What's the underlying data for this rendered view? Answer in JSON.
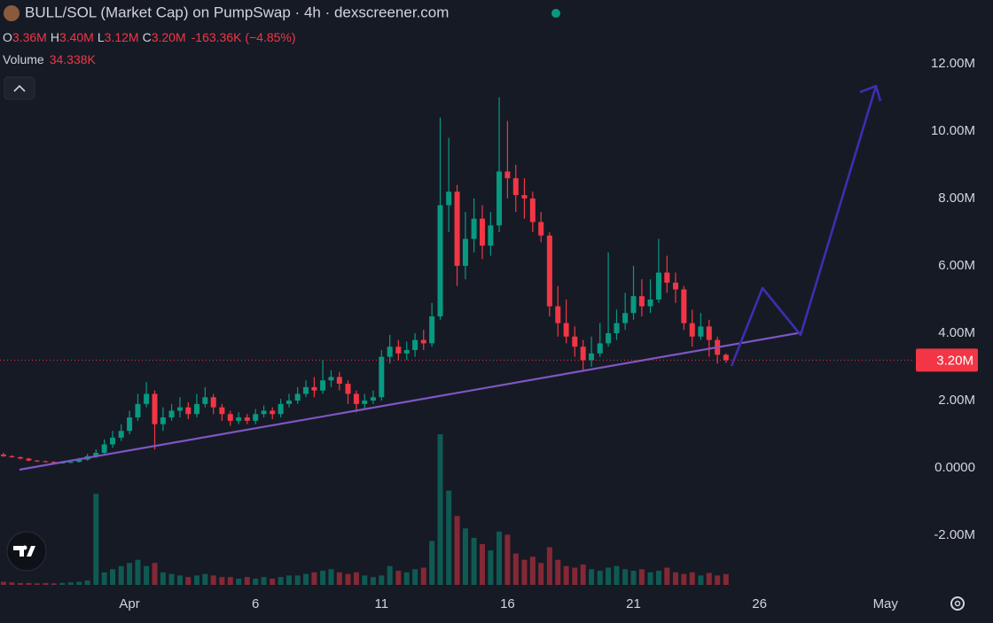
{
  "chart_data": {
    "type": "candlestick",
    "title": "BULL/SOL (Market Cap) on PumpSwap · 4h · dexscreener.com",
    "ohlc_legend": [
      {
        "key": "O",
        "value": 3.36,
        "label": "3.36M"
      },
      {
        "key": "H",
        "value": 3.4,
        "label": "3.40M"
      },
      {
        "key": "L",
        "value": 3.12,
        "label": "3.12M"
      },
      {
        "key": "C",
        "value": 3.2,
        "label": "3.20M"
      }
    ],
    "change": {
      "value": -0.16336,
      "percent": -4.85,
      "label": "-163.36K (−4.85%)"
    },
    "volume_legend": {
      "name": "Volume",
      "value": 34.338,
      "label": "34.338K"
    },
    "x": [
      -4,
      -3.67,
      -3.33,
      -3,
      -2.67,
      -2.33,
      -2,
      -1.67,
      -1.33,
      -1,
      -0.67,
      -0.33,
      0,
      0.33,
      0.67,
      1,
      1.33,
      1.67,
      2,
      2.33,
      2.67,
      3,
      3.33,
      3.67,
      4,
      4.33,
      4.67,
      5,
      5.33,
      5.67,
      6,
      6.33,
      6.67,
      7,
      7.33,
      7.67,
      8,
      8.33,
      8.67,
      9,
      9.33,
      9.67,
      10,
      10.33,
      10.67,
      11,
      11.33,
      11.67,
      12,
      12.33,
      12.67,
      13,
      13.33,
      13.67,
      14,
      14.33,
      14.67,
      15,
      15.33,
      15.67,
      16,
      16.33,
      16.67,
      17,
      17.33,
      17.67,
      18,
      18.33,
      18.67,
      19,
      19.33,
      19.67,
      20,
      20.33,
      20.67,
      21,
      21.33,
      21.67,
      22,
      22.33,
      22.67,
      23,
      23.33,
      23.67,
      24,
      24.33,
      24.67
    ],
    "open": [
      0.4,
      0.35,
      0.32,
      0.28,
      0.22,
      0.2,
      0.18,
      0.15,
      0.16,
      0.18,
      0.25,
      0.35,
      0.45,
      0.7,
      0.9,
      1.1,
      1.5,
      1.9,
      2.2,
      1.3,
      1.5,
      1.7,
      1.8,
      1.6,
      1.9,
      2.1,
      1.8,
      1.6,
      1.4,
      1.5,
      1.4,
      1.6,
      1.7,
      1.6,
      1.9,
      2.0,
      2.2,
      2.4,
      2.3,
      2.6,
      2.7,
      2.5,
      2.2,
      1.9,
      2.0,
      2.1,
      3.3,
      3.6,
      3.4,
      3.5,
      3.8,
      3.7,
      4.5,
      7.8,
      8.2,
      6.0,
      6.8,
      7.4,
      6.6,
      7.2,
      8.8,
      8.6,
      8.1,
      8.0,
      7.3,
      6.9,
      4.8,
      4.3,
      3.9,
      3.6,
      3.2,
      3.4,
      3.7,
      4.0,
      4.3,
      4.6,
      5.1,
      4.8,
      5.0,
      5.8,
      5.5,
      5.3,
      4.3,
      3.9,
      4.2,
      3.8,
      3.36
    ],
    "high": [
      0.45,
      0.38,
      0.34,
      0.3,
      0.24,
      0.22,
      0.2,
      0.18,
      0.22,
      0.3,
      0.42,
      0.55,
      0.85,
      1.1,
      1.3,
      1.7,
      2.2,
      2.55,
      2.3,
      1.8,
      1.9,
      2.1,
      1.95,
      2.2,
      2.4,
      2.2,
      1.9,
      1.7,
      1.65,
      1.6,
      1.75,
      1.85,
      1.8,
      2.05,
      2.2,
      2.4,
      2.6,
      2.7,
      3.2,
      2.9,
      2.85,
      2.6,
      2.3,
      2.2,
      2.3,
      3.5,
      3.95,
      3.8,
      3.75,
      4.0,
      4.1,
      4.9,
      10.4,
      9.8,
      8.4,
      7.6,
      8.0,
      7.8,
      7.6,
      11.0,
      10.3,
      9.0,
      8.6,
      8.2,
      7.6,
      7.0,
      5.4,
      5.0,
      4.2,
      3.8,
      3.9,
      4.3,
      6.4,
      4.7,
      5.2,
      6.0,
      5.6,
      5.6,
      6.8,
      6.3,
      5.8,
      5.4,
      4.7,
      4.6,
      4.4,
      3.9,
      3.4
    ],
    "low": [
      0.33,
      0.3,
      0.26,
      0.2,
      0.18,
      0.16,
      0.13,
      0.13,
      0.14,
      0.16,
      0.22,
      0.3,
      0.4,
      0.6,
      0.8,
      1.0,
      1.4,
      1.8,
      0.55,
      1.1,
      1.4,
      1.5,
      1.45,
      1.5,
      1.8,
      1.6,
      1.4,
      1.25,
      1.3,
      1.3,
      1.3,
      1.5,
      1.45,
      1.5,
      1.8,
      1.9,
      2.1,
      2.1,
      2.2,
      2.4,
      2.3,
      1.9,
      1.65,
      1.75,
      1.9,
      2.0,
      3.1,
      3.2,
      3.2,
      3.3,
      3.5,
      3.6,
      4.4,
      7.0,
      5.4,
      5.6,
      6.4,
      6.2,
      6.3,
      7.0,
      8.0,
      7.6,
      7.4,
      7.0,
      6.7,
      4.5,
      3.9,
      3.7,
      3.3,
      2.9,
      3.0,
      3.3,
      3.6,
      3.8,
      4.1,
      4.4,
      4.5,
      4.6,
      4.9,
      5.2,
      4.9,
      4.1,
      3.6,
      3.8,
      3.3,
      3.1,
      3.12
    ],
    "close": [
      0.35,
      0.32,
      0.28,
      0.22,
      0.2,
      0.18,
      0.15,
      0.16,
      0.18,
      0.25,
      0.35,
      0.45,
      0.7,
      0.9,
      1.1,
      1.5,
      1.9,
      2.2,
      1.3,
      1.5,
      1.7,
      1.8,
      1.6,
      1.9,
      2.1,
      1.8,
      1.6,
      1.4,
      1.5,
      1.4,
      1.6,
      1.7,
      1.6,
      1.9,
      2.0,
      2.2,
      2.4,
      2.3,
      2.6,
      2.7,
      2.5,
      2.2,
      1.9,
      2.0,
      2.1,
      3.3,
      3.6,
      3.4,
      3.5,
      3.8,
      3.7,
      4.5,
      7.8,
      8.2,
      6.0,
      6.8,
      7.4,
      6.6,
      7.2,
      8.8,
      8.6,
      8.1,
      8.0,
      7.3,
      6.9,
      4.8,
      4.3,
      3.9,
      3.6,
      3.2,
      3.4,
      3.7,
      4.0,
      4.3,
      4.6,
      5.1,
      4.8,
      5.0,
      5.8,
      5.5,
      5.3,
      4.3,
      3.9,
      4.2,
      3.8,
      3.36,
      3.2
    ],
    "volume": [
      10,
      8,
      6,
      6,
      5,
      6,
      5,
      6,
      8,
      10,
      14,
      290,
      40,
      50,
      60,
      70,
      80,
      60,
      70,
      40,
      35,
      30,
      25,
      30,
      35,
      30,
      25,
      25,
      20,
      25,
      20,
      25,
      20,
      25,
      30,
      30,
      35,
      40,
      45,
      50,
      40,
      35,
      40,
      30,
      25,
      30,
      60,
      45,
      40,
      50,
      55,
      140,
      480,
      300,
      220,
      180,
      150,
      130,
      110,
      170,
      160,
      100,
      80,
      90,
      70,
      120,
      80,
      60,
      55,
      65,
      50,
      45,
      55,
      60,
      50,
      45,
      50,
      40,
      45,
      55,
      40,
      35,
      40,
      30,
      38,
      30,
      34.338
    ],
    "up_color": "#089981",
    "down_color": "#f23645",
    "xlim": [
      -4.14,
      32.1
    ],
    "xticks": [
      {
        "value": 1,
        "label": "Apr"
      },
      6,
      11,
      16,
      21,
      26,
      {
        "value": 31,
        "label": "May"
      }
    ],
    "ylim": [
      -3.47,
      13.89
    ],
    "yticks": [
      {
        "value": -2,
        "label": "-2.00M"
      },
      {
        "value": 0,
        "label": "0.0000"
      },
      {
        "value": 2,
        "label": "2.00M"
      },
      {
        "value": 4,
        "label": "4.00M"
      },
      {
        "value": 6,
        "label": "6.00M"
      },
      {
        "value": 8,
        "label": "8.00M"
      },
      {
        "value": 10,
        "label": "10.00M"
      },
      {
        "value": 12,
        "label": "12.00M"
      }
    ]
  }
}
